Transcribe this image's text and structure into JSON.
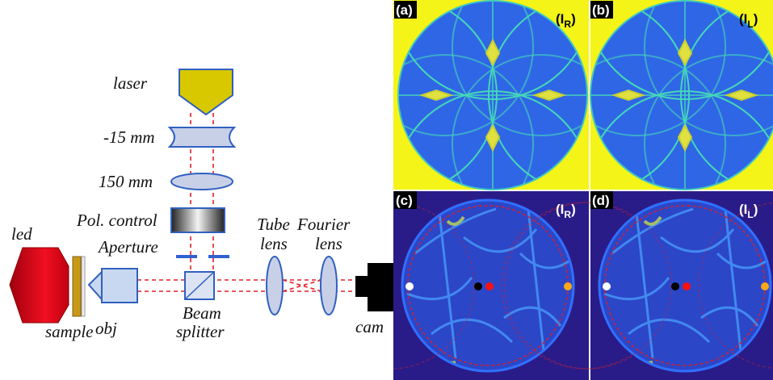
{
  "setup": {
    "laser": "laser",
    "diverging_lens": "-15 mm",
    "converging_lens": "150 mm",
    "polarization": "Pol. control",
    "aperture": "Aperture",
    "tube_lens": [
      "Tube",
      "lens"
    ],
    "fourier_lens": [
      "Fourier",
      "lens"
    ],
    "led": "led",
    "sample": "sample",
    "objective": "obj",
    "beam_splitter": [
      "Beam",
      "splitter"
    ],
    "camera": "cam"
  },
  "panels": [
    {
      "letter": "(a)",
      "open": "(I",
      "sub": "R",
      "close": ")"
    },
    {
      "letter": "(b)",
      "open": "(I",
      "sub": "L",
      "close": ")"
    },
    {
      "letter": "(c)",
      "open": "(I",
      "sub": "R",
      "close": ")"
    },
    {
      "letter": "(d)",
      "open": "(I",
      "sub": "L",
      "close": ")"
    }
  ]
}
